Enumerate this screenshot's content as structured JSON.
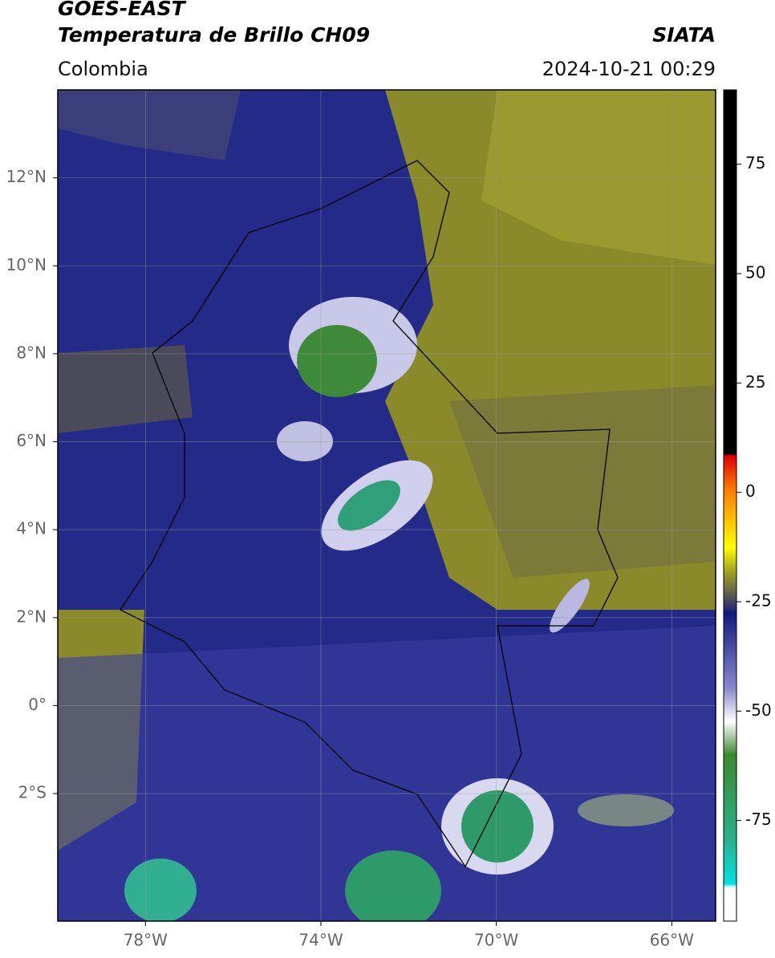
{
  "header": {
    "title": "GOES-EAST",
    "subtitle": "Temperatura de Brillo CH09",
    "source": "SIATA",
    "region": "Colombia",
    "datetime": "2024-10-21 00:29"
  },
  "map": {
    "xlim": [
      -80,
      -65
    ],
    "ylim": [
      -4.9,
      14
    ],
    "xticks": [
      {
        "value": -78,
        "label": "78°W"
      },
      {
        "value": -74,
        "label": "74°W"
      },
      {
        "value": -70,
        "label": "70°W"
      },
      {
        "value": -66,
        "label": "66°W"
      }
    ],
    "yticks": [
      {
        "value": 12,
        "label": "12°N"
      },
      {
        "value": 10,
        "label": "10°N"
      },
      {
        "value": 8,
        "label": "8°N"
      },
      {
        "value": 6,
        "label": "6°N"
      },
      {
        "value": 4,
        "label": "4°N"
      },
      {
        "value": 2,
        "label": "2°N"
      },
      {
        "value": 0,
        "label": "0°"
      },
      {
        "value": -2,
        "label": "2°S"
      }
    ]
  },
  "colorbar": {
    "ylim": [
      -98,
      92
    ],
    "yticks": [
      75,
      50,
      25,
      0,
      -25,
      -50,
      -75
    ]
  }
}
